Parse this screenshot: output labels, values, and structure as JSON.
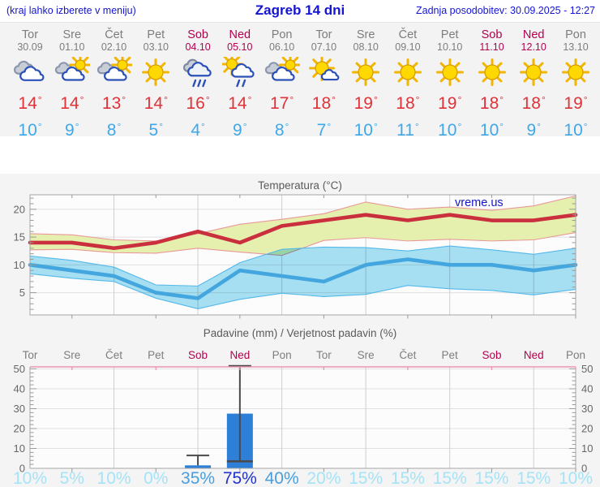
{
  "header": {
    "left": "(kraj lahko izberete v meniju)",
    "title": "Zagreb 14 dni",
    "updated": "Zadnja posodobitev: 30.09.2025 - 12:27"
  },
  "deg_symbol": "°",
  "watermark": "vreme.us",
  "forecast": {
    "days": [
      {
        "name": "Tor",
        "date": "30.09",
        "weekend": false,
        "icon": "cloudy",
        "max": "14",
        "min": "10"
      },
      {
        "name": "Sre",
        "date": "01.10",
        "weekend": false,
        "icon": "partly-cloudy",
        "max": "14",
        "min": "9"
      },
      {
        "name": "Čet",
        "date": "02.10",
        "weekend": false,
        "icon": "partly-cloudy",
        "max": "13",
        "min": "8"
      },
      {
        "name": "Pet",
        "date": "03.10",
        "weekend": false,
        "icon": "sunny",
        "max": "14",
        "min": "5"
      },
      {
        "name": "Sob",
        "date": "04.10",
        "weekend": true,
        "icon": "rain",
        "max": "16",
        "min": "4"
      },
      {
        "name": "Ned",
        "date": "05.10",
        "weekend": true,
        "icon": "sun-rain",
        "max": "14",
        "min": "9"
      },
      {
        "name": "Pon",
        "date": "06.10",
        "weekend": false,
        "icon": "partly-cloudy",
        "max": "17",
        "min": "8"
      },
      {
        "name": "Tor",
        "date": "07.10",
        "weekend": false,
        "icon": "mostly-sunny",
        "max": "18",
        "min": "7"
      },
      {
        "name": "Sre",
        "date": "08.10",
        "weekend": false,
        "icon": "sunny",
        "max": "19",
        "min": "10"
      },
      {
        "name": "Čet",
        "date": "09.10",
        "weekend": false,
        "icon": "sunny",
        "max": "18",
        "min": "11"
      },
      {
        "name": "Pet",
        "date": "10.10",
        "weekend": false,
        "icon": "sunny",
        "max": "19",
        "min": "10"
      },
      {
        "name": "Sob",
        "date": "11.10",
        "weekend": true,
        "icon": "sunny",
        "max": "18",
        "min": "10"
      },
      {
        "name": "Ned",
        "date": "12.10",
        "weekend": true,
        "icon": "sunny",
        "max": "18",
        "min": "9"
      },
      {
        "name": "Pon",
        "date": "13.10",
        "weekend": false,
        "icon": "sunny",
        "max": "19",
        "min": "10"
      }
    ]
  },
  "chart_data": [
    {
      "type": "line",
      "title": "Temperatura (°C)",
      "categories": [
        "Tor 30.09",
        "Sre 01.10",
        "Čet 02.10",
        "Pet 03.10",
        "Sob 04.10",
        "Ned 05.10",
        "Pon 06.10",
        "Tor 07.10",
        "Sre 08.10",
        "Čet 09.10",
        "Pet 10.10",
        "Sob 11.10",
        "Ned 12.10",
        "Pon 13.10"
      ],
      "ylim": [
        1,
        22.6
      ],
      "yticks": [
        5,
        10,
        15,
        20
      ],
      "grid": {
        "horizontal": true,
        "vertical_every_2_days": true
      },
      "watermark": "vreme.us",
      "series": [
        {
          "name": "Max temperatura",
          "color": "#c92f3d",
          "values": [
            14,
            14,
            13,
            14,
            16,
            14,
            17,
            18,
            19,
            18,
            19,
            18,
            18,
            19
          ],
          "band": {
            "fill": "#e5f0ae",
            "edge": "#e89898",
            "upper": [
              15.6,
              15.4,
              14.5,
              14.3,
              15.6,
              17.3,
              18.2,
              19.2,
              21.3,
              20.0,
              20.4,
              19.8,
              20.6,
              22.4
            ],
            "lower": [
              12.7,
              12.8,
              12.2,
              12.1,
              13.0,
              12.3,
              11.7,
              14.4,
              14.9,
              14.3,
              14.6,
              14.3,
              14.5,
              15.8
            ]
          }
        },
        {
          "name": "Min temperatura",
          "color": "#43a6de",
          "values": [
            10,
            9,
            8,
            5,
            4,
            9,
            8,
            7,
            10,
            11,
            10,
            10,
            9,
            10
          ],
          "band": {
            "fill": "#a8e2f5",
            "edge": "#54b8ea",
            "upper": [
              11.6,
              10.8,
              9.6,
              6.4,
              6.2,
              10.4,
              12.8,
              13.2,
              13.1,
              12.5,
              13.4,
              12.7,
              11.9,
              13.0
            ],
            "lower": [
              8.4,
              7.6,
              7.0,
              4.0,
              2.1,
              3.8,
              4.9,
              4.3,
              4.7,
              6.3,
              5.7,
              5.4,
              4.6,
              5.6
            ]
          }
        }
      ]
    },
    {
      "type": "bar",
      "title": "Padavine (mm) / Verjetnost padavin (%)",
      "categories": [
        "Tor",
        "Sre",
        "Čet",
        "Pet",
        "Sob",
        "Ned",
        "Pon",
        "Tor",
        "Sre",
        "Čet",
        "Pet",
        "Sob",
        "Ned",
        "Pon"
      ],
      "weekend_indices": [
        4,
        5,
        11,
        12
      ],
      "values": [
        0,
        0,
        0,
        0,
        1.5,
        27.5,
        0,
        0,
        0,
        0,
        0,
        0,
        0,
        0
      ],
      "whiskers": [
        {
          "index": 4,
          "low": 1.5,
          "high": 6.5,
          "low_cap": false,
          "high_cap": true
        },
        {
          "index": 5,
          "low": 3.5,
          "high": 51.5,
          "low_cap": true,
          "high_cap": true
        }
      ],
      "probabilities": [
        {
          "label": "10%",
          "tone": "light"
        },
        {
          "label": "5%",
          "tone": "light"
        },
        {
          "label": "10%",
          "tone": "light"
        },
        {
          "label": "0%",
          "tone": "light"
        },
        {
          "label": "35%",
          "tone": "medium"
        },
        {
          "label": "75%",
          "tone": "dark"
        },
        {
          "label": "40%",
          "tone": "medium"
        },
        {
          "label": "20%",
          "tone": "light"
        },
        {
          "label": "15%",
          "tone": "light"
        },
        {
          "label": "15%",
          "tone": "light"
        },
        {
          "label": "15%",
          "tone": "light"
        },
        {
          "label": "15%",
          "tone": "light"
        },
        {
          "label": "15%",
          "tone": "light"
        },
        {
          "label": "10%",
          "tone": "light"
        }
      ],
      "ylim": [
        0,
        51
      ],
      "yticks": [
        0,
        10,
        20,
        30,
        40,
        50
      ],
      "bar_color": "#2d7fd8"
    }
  ],
  "palette": {
    "header_blue": "#1414d2",
    "day_gray": "#7d7d7d",
    "weekend_red": "#b4004e",
    "temp_max": "#e03238",
    "temp_min": "#3ea8ea",
    "strip_bg": "#f3f3f3",
    "section_bg": "#f4f4f4",
    "plot_bg": "#fcfcfc",
    "axis_gray": "#a6a6a6",
    "tick_gray": "#9a9a9a",
    "grid_gray": "#e0e0e0",
    "grid_day": "#cfcfcf",
    "label_gray": "#666666",
    "title_gray": "#5a5a5a",
    "watermark_blue": "#1515cc",
    "bar_blue": "#2d7fd8",
    "whisker_gray": "#4a4a4a",
    "pink_border": "#e794ac",
    "pct_light": "#a5e3f7",
    "pct_medium": "#4a9edd",
    "pct_dark": "#2133c9"
  }
}
